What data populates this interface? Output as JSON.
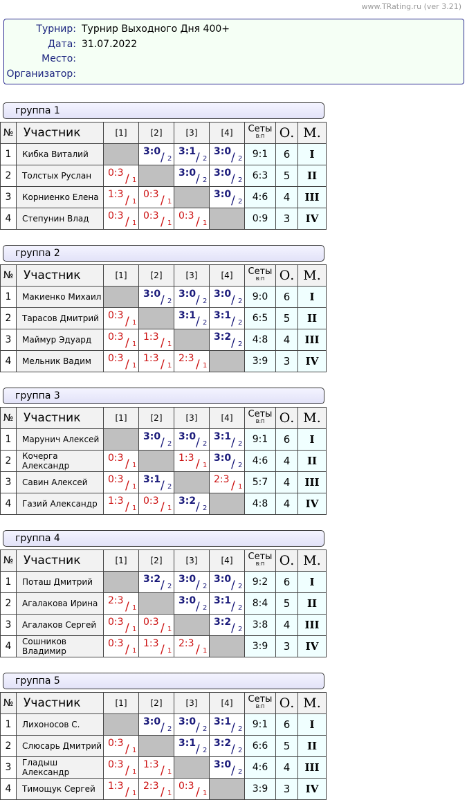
{
  "site": "www.TRating.ru (ver 3.21)",
  "info": [
    {
      "label": "Турнир:",
      "value": "Турнир Выходного Дня 400+"
    },
    {
      "label": "Дата:",
      "value": "31.07.2022"
    },
    {
      "label": "Место:",
      "value": ""
    },
    {
      "label": "Организатор:",
      "value": ""
    }
  ],
  "header": {
    "num": "№",
    "name": "Участник",
    "cols": [
      "[1]",
      "[2]",
      "[3]",
      "[4]"
    ],
    "sets": "Сеты",
    "sets_sub": "В:П",
    "points": "О.",
    "place": "М."
  },
  "colors": {
    "win": "#1a1a7a",
    "loss": "#cc1111"
  },
  "groups": [
    {
      "title": "группа 1",
      "rows": [
        {
          "n": "1",
          "name": "Кибка Виталий",
          "r": [
            null,
            [
              "3:0",
              "2"
            ],
            [
              "3:1",
              "2"
            ],
            [
              "3:0",
              "2"
            ]
          ],
          "sets": "9:1",
          "pts": "6",
          "place": "I"
        },
        {
          "n": "2",
          "name": "Толстых Руслан",
          "r": [
            [
              "0:3",
              "1"
            ],
            null,
            [
              "3:0",
              "2"
            ],
            [
              "3:0",
              "2"
            ]
          ],
          "sets": "6:3",
          "pts": "5",
          "place": "II"
        },
        {
          "n": "3",
          "name": "Корниенко Елена",
          "r": [
            [
              "1:3",
              "1"
            ],
            [
              "0:3",
              "1"
            ],
            null,
            [
              "3:0",
              "2"
            ]
          ],
          "sets": "4:6",
          "pts": "4",
          "place": "III"
        },
        {
          "n": "4",
          "name": "Степунин Влад",
          "r": [
            [
              "0:3",
              "1"
            ],
            [
              "0:3",
              "1"
            ],
            [
              "0:3",
              "1"
            ],
            null
          ],
          "sets": "0:9",
          "pts": "3",
          "place": "IV"
        }
      ]
    },
    {
      "title": "группа 2",
      "rows": [
        {
          "n": "1",
          "name": "Макиенко Михаил",
          "r": [
            null,
            [
              "3:0",
              "2"
            ],
            [
              "3:0",
              "2"
            ],
            [
              "3:0",
              "2"
            ]
          ],
          "sets": "9:0",
          "pts": "6",
          "place": "I"
        },
        {
          "n": "2",
          "name": "Тарасов Дмитрий",
          "r": [
            [
              "0:3",
              "1"
            ],
            null,
            [
              "3:1",
              "2"
            ],
            [
              "3:1",
              "2"
            ]
          ],
          "sets": "6:5",
          "pts": "5",
          "place": "II"
        },
        {
          "n": "3",
          "name": "Маймур Эдуард",
          "r": [
            [
              "0:3",
              "1"
            ],
            [
              "1:3",
              "1"
            ],
            null,
            [
              "3:2",
              "2"
            ]
          ],
          "sets": "4:8",
          "pts": "4",
          "place": "III"
        },
        {
          "n": "4",
          "name": "Мельник Вадим",
          "r": [
            [
              "0:3",
              "1"
            ],
            [
              "1:3",
              "1"
            ],
            [
              "2:3",
              "1"
            ],
            null
          ],
          "sets": "3:9",
          "pts": "3",
          "place": "IV"
        }
      ]
    },
    {
      "title": "группа 3",
      "rows": [
        {
          "n": "1",
          "name": "Марунич Алексей",
          "r": [
            null,
            [
              "3:0",
              "2"
            ],
            [
              "3:0",
              "2"
            ],
            [
              "3:1",
              "2"
            ]
          ],
          "sets": "9:1",
          "pts": "6",
          "place": "I"
        },
        {
          "n": "2",
          "name": "Кочерга Александр",
          "r": [
            [
              "0:3",
              "1"
            ],
            null,
            [
              "1:3",
              "1"
            ],
            [
              "3:0",
              "2"
            ]
          ],
          "sets": "4:6",
          "pts": "4",
          "place": "II"
        },
        {
          "n": "3",
          "name": "Савин Алексей",
          "r": [
            [
              "0:3",
              "1"
            ],
            [
              "3:1",
              "2"
            ],
            null,
            [
              "2:3",
              "1"
            ]
          ],
          "sets": "5:7",
          "pts": "4",
          "place": "III"
        },
        {
          "n": "4",
          "name": "Газий Александр",
          "r": [
            [
              "1:3",
              "1"
            ],
            [
              "0:3",
              "1"
            ],
            [
              "3:2",
              "2"
            ],
            null
          ],
          "sets": "4:8",
          "pts": "4",
          "place": "IV"
        }
      ]
    },
    {
      "title": "группа 4",
      "rows": [
        {
          "n": "1",
          "name": "Поташ Дмитрий",
          "r": [
            null,
            [
              "3:2",
              "2"
            ],
            [
              "3:0",
              "2"
            ],
            [
              "3:0",
              "2"
            ]
          ],
          "sets": "9:2",
          "pts": "6",
          "place": "I"
        },
        {
          "n": "2",
          "name": "Агалакова Ирина",
          "r": [
            [
              "2:3",
              "1"
            ],
            null,
            [
              "3:0",
              "2"
            ],
            [
              "3:1",
              "2"
            ]
          ],
          "sets": "8:4",
          "pts": "5",
          "place": "II"
        },
        {
          "n": "3",
          "name": "Агалаков Сергей",
          "r": [
            [
              "0:3",
              "1"
            ],
            [
              "0:3",
              "1"
            ],
            null,
            [
              "3:2",
              "2"
            ]
          ],
          "sets": "3:8",
          "pts": "4",
          "place": "III"
        },
        {
          "n": "4",
          "name": "Сошников Владимир",
          "r": [
            [
              "0:3",
              "1"
            ],
            [
              "1:3",
              "1"
            ],
            [
              "2:3",
              "1"
            ],
            null
          ],
          "sets": "3:9",
          "pts": "3",
          "place": "IV"
        }
      ]
    },
    {
      "title": "группа 5",
      "rows": [
        {
          "n": "1",
          "name": "Лихоносов С.",
          "r": [
            null,
            [
              "3:0",
              "2"
            ],
            [
              "3:0",
              "2"
            ],
            [
              "3:1",
              "2"
            ]
          ],
          "sets": "9:1",
          "pts": "6",
          "place": "I"
        },
        {
          "n": "2",
          "name": "Слюсарь Дмитрий",
          "r": [
            [
              "0:3",
              "1"
            ],
            null,
            [
              "3:1",
              "2"
            ],
            [
              "3:2",
              "2"
            ]
          ],
          "sets": "6:6",
          "pts": "5",
          "place": "II"
        },
        {
          "n": "3",
          "name": "Гладыш Александр",
          "r": [
            [
              "0:3",
              "1"
            ],
            [
              "1:3",
              "1"
            ],
            null,
            [
              "3:0",
              "2"
            ]
          ],
          "sets": "4:6",
          "pts": "4",
          "place": "III"
        },
        {
          "n": "4",
          "name": "Тимощук Сергей",
          "r": [
            [
              "1:3",
              "1"
            ],
            [
              "2:3",
              "1"
            ],
            [
              "0:3",
              "1"
            ],
            null
          ],
          "sets": "3:9",
          "pts": "3",
          "place": "IV"
        }
      ]
    }
  ]
}
